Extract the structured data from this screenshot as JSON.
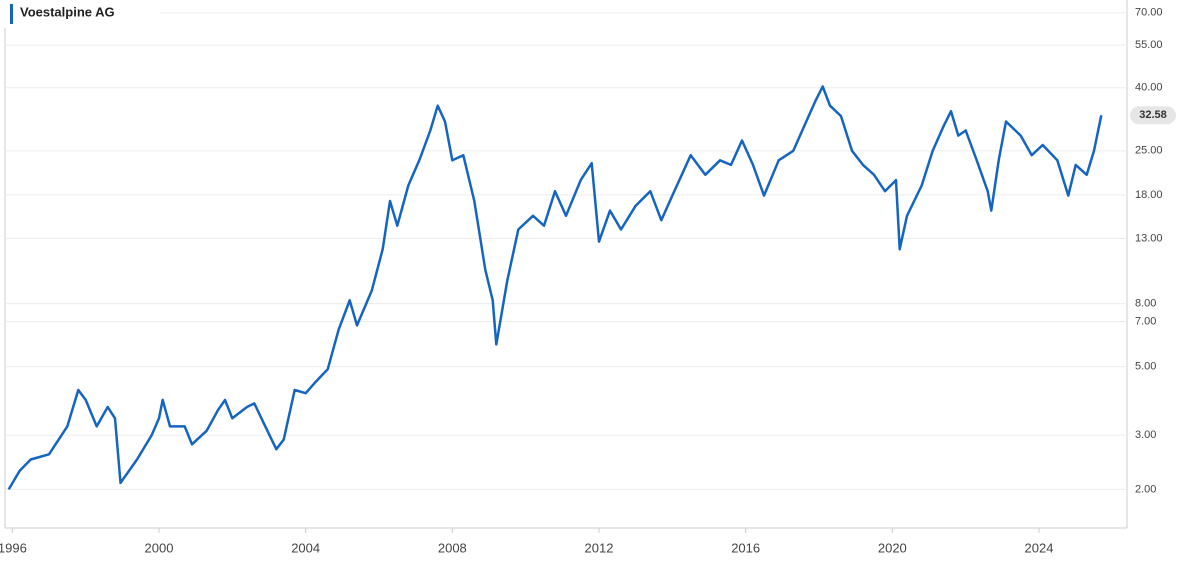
{
  "chart_data": {
    "type": "line",
    "log_scale": true,
    "grid": true,
    "legend": "top-left",
    "x": [
      1995.9,
      1996.2,
      1996.5,
      1997.0,
      1997.5,
      1997.8,
      1998.0,
      1998.3,
      1998.6,
      1998.8,
      1998.95,
      1999.4,
      1999.8,
      2000.0,
      2000.1,
      2000.3,
      2000.7,
      2000.9,
      2001.3,
      2001.6,
      2001.8,
      2002.0,
      2002.4,
      2002.6,
      2002.9,
      2003.2,
      2003.4,
      2003.7,
      2004.0,
      2004.3,
      2004.6,
      2004.9,
      2005.2,
      2005.4,
      2005.8,
      2006.1,
      2006.3,
      2006.5,
      2006.8,
      2007.1,
      2007.4,
      2007.6,
      2007.8,
      2008.0,
      2008.3,
      2008.6,
      2008.9,
      2009.1,
      2009.2,
      2009.5,
      2009.8,
      2010.2,
      2010.5,
      2010.8,
      2011.1,
      2011.5,
      2011.8,
      2012.0,
      2012.3,
      2012.6,
      2013.0,
      2013.4,
      2013.7,
      2014.0,
      2014.5,
      2014.9,
      2015.3,
      2015.6,
      2015.9,
      2016.2,
      2016.5,
      2016.9,
      2017.3,
      2017.6,
      2017.9,
      2018.1,
      2018.3,
      2018.6,
      2018.9,
      2019.2,
      2019.5,
      2019.8,
      2020.1,
      2020.2,
      2020.4,
      2020.8,
      2021.1,
      2021.4,
      2021.6,
      2021.8,
      2022.0,
      2022.3,
      2022.6,
      2022.7,
      2022.9,
      2023.1,
      2023.5,
      2023.8,
      2024.1,
      2024.5,
      2024.8,
      2025.0,
      2025.3,
      2025.5,
      2025.7
    ],
    "series": [
      {
        "name": "Voestalpine AG",
        "color": "#1565c0",
        "values": [
          2.0,
          2.3,
          2.5,
          2.6,
          3.2,
          4.2,
          3.9,
          3.2,
          3.7,
          3.4,
          2.1,
          2.5,
          3.0,
          3.4,
          3.9,
          3.2,
          3.2,
          2.8,
          3.1,
          3.6,
          3.9,
          3.4,
          3.7,
          3.8,
          3.2,
          2.7,
          2.9,
          4.2,
          4.1,
          4.5,
          4.9,
          6.6,
          8.2,
          6.8,
          8.8,
          12.0,
          17.2,
          14.3,
          19.3,
          23.3,
          29.1,
          35.0,
          31.1,
          23.3,
          24.2,
          17.2,
          10.3,
          8.2,
          5.9,
          9.5,
          13.9,
          15.4,
          14.3,
          18.5,
          15.4,
          20.1,
          22.8,
          12.7,
          16.0,
          13.9,
          16.6,
          18.5,
          14.9,
          17.9,
          24.2,
          20.9,
          23.3,
          22.5,
          27.0,
          22.5,
          17.9,
          23.3,
          25.0,
          30.1,
          36.2,
          40.4,
          35.0,
          32.4,
          25.0,
          22.5,
          20.9,
          18.5,
          20.1,
          12.0,
          15.4,
          19.3,
          25.0,
          30.1,
          33.6,
          28.0,
          29.1,
          23.3,
          18.5,
          16.0,
          23.3,
          31.1,
          28.0,
          24.2,
          26.1,
          23.3,
          17.9,
          22.5,
          20.9,
          25.0,
          32.58
        ]
      }
    ],
    "last_value": 32.58,
    "xlim": [
      1995.8,
      2026.4
    ],
    "xticks": [
      1996,
      2000,
      2004,
      2008,
      2012,
      2016,
      2020,
      2024
    ],
    "ylim": [
      1.5,
      77
    ],
    "yticks": [
      {
        "value": 2,
        "label": "2.00"
      },
      {
        "value": 3,
        "label": "3.00"
      },
      {
        "value": 5,
        "label": "5.00"
      },
      {
        "value": 7,
        "label": "7.00"
      },
      {
        "value": 8,
        "label": "8.00"
      },
      {
        "value": 13,
        "label": "13.00"
      },
      {
        "value": 18,
        "label": "18.00"
      },
      {
        "value": 25,
        "label": "25.00"
      },
      {
        "value": 40,
        "label": "40.00"
      },
      {
        "value": 55,
        "label": "55.00"
      },
      {
        "value": 70,
        "label": "70.00"
      }
    ]
  }
}
